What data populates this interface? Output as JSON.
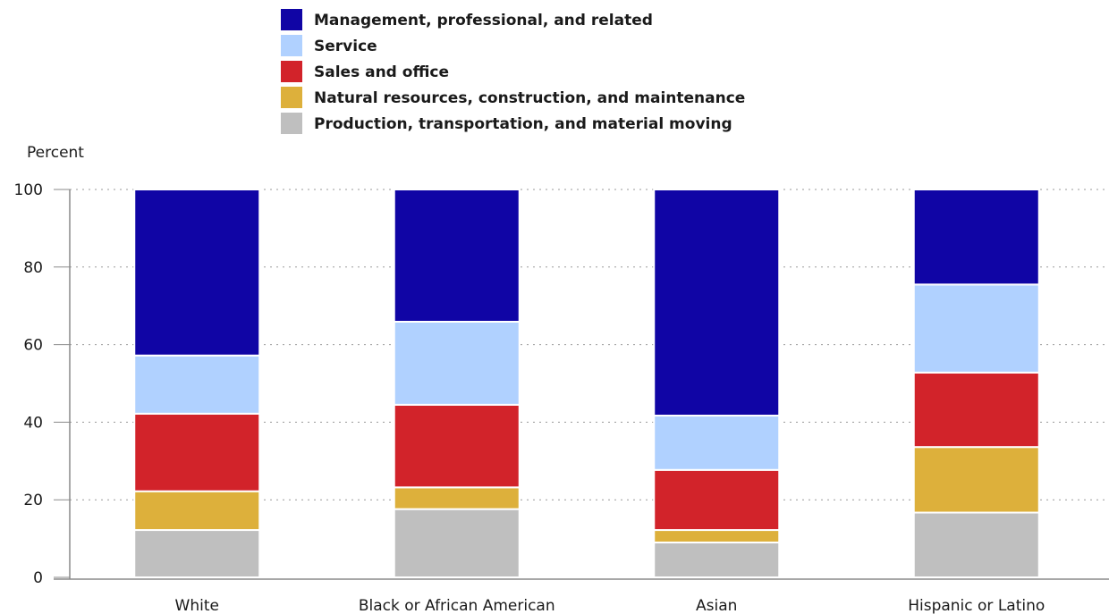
{
  "chart_data": {
    "type": "bar",
    "stacked": true,
    "ylabel": "Percent",
    "ylim": [
      0,
      100
    ],
    "yticks": [
      0,
      20,
      40,
      60,
      80,
      100
    ],
    "grid": true,
    "legend_position": "top",
    "categories": [
      "White",
      "Black or African American",
      "Asian",
      "Hispanic or Latino"
    ],
    "series": [
      {
        "name": "Production, transportation, and material moving",
        "color": "#bfbfbf",
        "values": [
          12.2,
          17.6,
          9.0,
          16.7
        ]
      },
      {
        "name": "Natural resources, construction, and maintenance",
        "color": "#ddb03b",
        "values": [
          10.0,
          5.6,
          3.2,
          16.9
        ]
      },
      {
        "name": "Sales and office",
        "color": "#d2232a",
        "values": [
          20.0,
          21.3,
          15.5,
          19.2
        ]
      },
      {
        "name": "Service",
        "color": "#b0d1ff",
        "values": [
          15.0,
          21.4,
          14.0,
          22.7
        ]
      },
      {
        "name": "Management, professional, and related",
        "color": "#1005a5",
        "values": [
          42.8,
          34.1,
          58.3,
          24.5
        ]
      }
    ],
    "legend_order": [
      4,
      3,
      2,
      1,
      0
    ]
  }
}
